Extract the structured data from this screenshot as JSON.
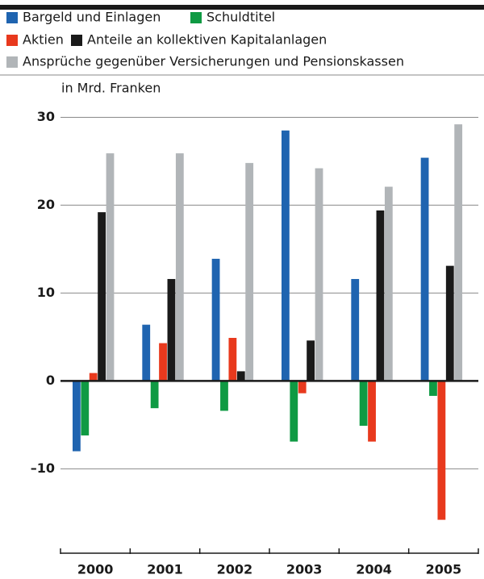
{
  "chart_data": {
    "type": "bar",
    "y_label": "in Mrd. Franken",
    "categories": [
      "2000",
      "2001",
      "2002",
      "2003",
      "2004",
      "2005"
    ],
    "series": [
      {
        "name": "Bargeld und Einlagen",
        "color": "#1f64b0",
        "values": [
          -8,
          6.4,
          13.9,
          28.5,
          11.6,
          25.4
        ]
      },
      {
        "name": "Schuldtitel",
        "color": "#0f9a43",
        "values": [
          -6.2,
          -3.1,
          -3.4,
          -6.9,
          -5.1,
          -1.7
        ]
      },
      {
        "name": "Aktien",
        "color": "#e8391d",
        "values": [
          0.9,
          4.3,
          4.9,
          -1.4,
          -6.9,
          -15.8
        ]
      },
      {
        "name": "Anteile an kollektiven Kapitalanlagen",
        "color": "#1a1a1a",
        "values": [
          19.2,
          11.6,
          1.1,
          4.6,
          19.4,
          13.1
        ]
      },
      {
        "name": "Ansprüche gegenüber Versicherungen und Pensionskassen",
        "color": "#b1b5b8",
        "values": [
          25.9,
          25.9,
          24.8,
          24.2,
          22.1,
          29.2
        ]
      }
    ],
    "ylim": [
      -19.6,
      30.5
    ],
    "yticks": [
      -10,
      0,
      10,
      20,
      30
    ],
    "yticks_labels": [
      "–10",
      "0",
      "10",
      "20",
      "30"
    ],
    "grid": true
  }
}
